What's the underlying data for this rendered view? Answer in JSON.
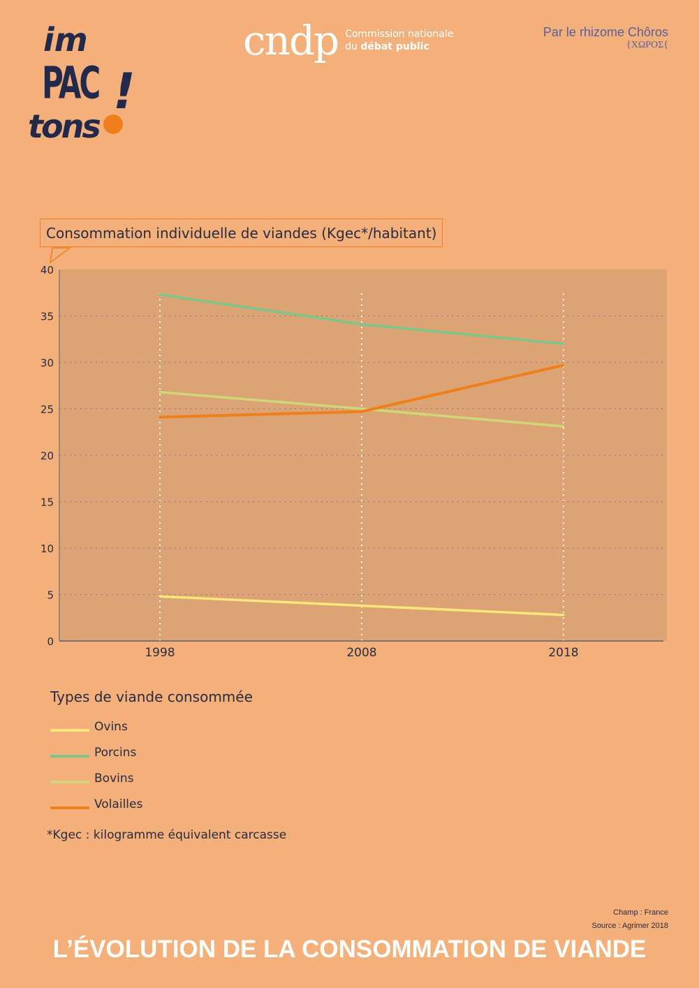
{
  "header": {
    "logo_text": [
      "im",
      "PAC",
      "tons",
      "!"
    ],
    "cndp_short": "cndp",
    "cndp_line1": "Commission nationale",
    "cndp_line2_a": "du ",
    "cndp_line2_b": "débat public",
    "rhizome": "Par le rhizome Chôros",
    "choros": "{ΧΩΡΟΣ{"
  },
  "colors": {
    "background": "#f3b07a",
    "plot_bg": "#dca474",
    "ovins": "#fde67a",
    "porcins": "#7cc68c",
    "bovins": "#cdd978",
    "volailles": "#ef7f1a"
  },
  "chart_data": {
    "type": "line",
    "title": "Consommation individuelle de viandes (Kgec*/habitant)",
    "x": [
      "1998",
      "2008",
      "2018"
    ],
    "ylim": [
      0,
      40
    ],
    "yticks": [
      0,
      5,
      10,
      15,
      20,
      25,
      30,
      35,
      40
    ],
    "grid": true,
    "series": [
      {
        "name": "Ovins",
        "key": "ovins",
        "values": [
          4.8,
          3.8,
          2.8
        ]
      },
      {
        "name": "Porcins",
        "key": "porcins",
        "values": [
          37.3,
          34.1,
          32.0
        ]
      },
      {
        "name": "Bovins",
        "key": "bovins",
        "values": [
          26.8,
          25.0,
          23.1
        ]
      },
      {
        "name": "Volailles",
        "key": "volailles",
        "values": [
          24.1,
          24.7,
          29.7
        ]
      }
    ],
    "legend_title": "Types de viande consommée",
    "legend_placement": "bottom-left"
  },
  "note": "*Kgec : kilogramme équivalent carcasse",
  "source": {
    "scope": "Champ : France",
    "source": "Source : Agrimer 2018"
  },
  "page_title": "L’ÉVOLUTION DE LA CONSOMMATION DE VIANDE"
}
